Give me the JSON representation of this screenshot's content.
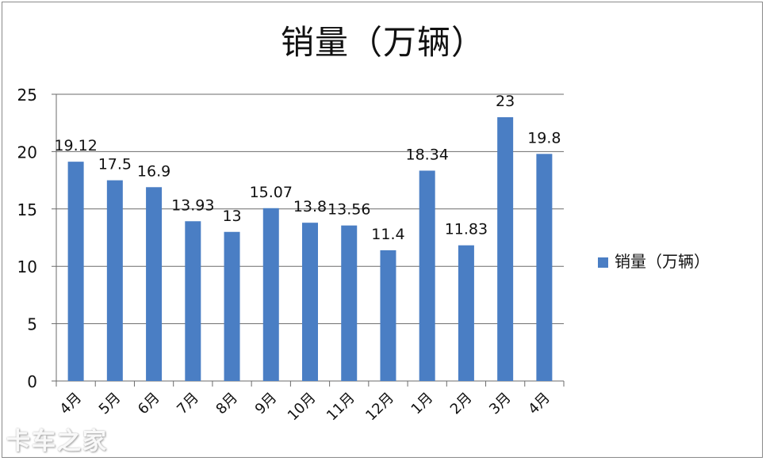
{
  "chart_data": {
    "type": "bar",
    "title": "销量（万辆）",
    "xlabel": "",
    "ylabel": "",
    "categories": [
      "4月",
      "5月",
      "6月",
      "7月",
      "8月",
      "9月",
      "10月",
      "11月",
      "12月",
      "1月",
      "2月",
      "3月",
      "4月"
    ],
    "series": [
      {
        "name": "销量（万辆）",
        "values": [
          19.12,
          17.5,
          16.9,
          13.93,
          13,
          15.07,
          13.8,
          13.56,
          11.4,
          18.34,
          11.83,
          23,
          19.8
        ],
        "labels": [
          "19.12",
          "17.5",
          "16.9",
          "13.93",
          "13",
          "15.07",
          "13.8",
          "13.56",
          "11.4",
          "18.34",
          "11.83",
          "23",
          "19.8"
        ],
        "color": "#4a7ec4"
      }
    ],
    "ylim": [
      0,
      25
    ],
    "yticks": [
      0,
      5,
      10,
      15,
      20,
      25
    ],
    "grid": true,
    "legend_position": "right",
    "x_tick_rotation": -45
  },
  "watermark": "卡车之家"
}
